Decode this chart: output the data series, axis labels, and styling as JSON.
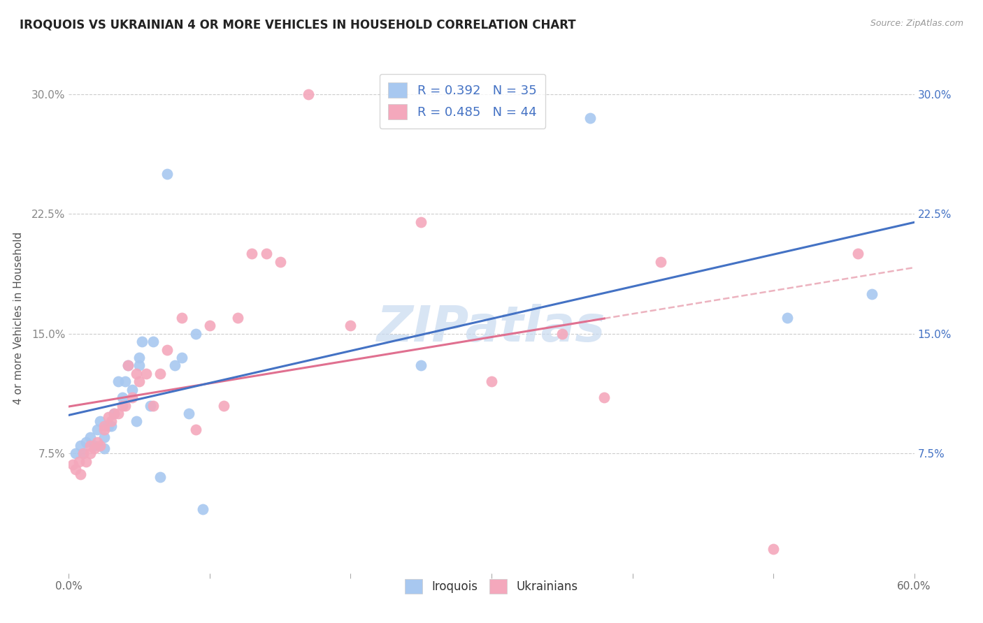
{
  "title": "IROQUOIS VS UKRAINIAN 4 OR MORE VEHICLES IN HOUSEHOLD CORRELATION CHART",
  "source": "Source: ZipAtlas.com",
  "ylabel": "4 or more Vehicles in Household",
  "xlim": [
    0.0,
    0.6
  ],
  "ylim": [
    0.0,
    0.32
  ],
  "xticks": [
    0.0,
    0.1,
    0.2,
    0.3,
    0.4,
    0.5,
    0.6
  ],
  "xticklabels_left": "0.0%",
  "xticklabels_right": "60.0%",
  "yticks": [
    0.0,
    0.075,
    0.15,
    0.225,
    0.3
  ],
  "yticklabels_left": [
    "",
    "7.5%",
    "15.0%",
    "22.5%",
    "30.0%"
  ],
  "yticklabels_right": [
    "",
    "7.5%",
    "15.0%",
    "22.5%",
    "30.0%"
  ],
  "iroquois_R": 0.392,
  "iroquois_N": 35,
  "ukrainian_R": 0.485,
  "ukrainian_N": 44,
  "iroquois_color": "#a8c8f0",
  "ukrainian_color": "#f4a8bc",
  "iroquois_line_color": "#4472c4",
  "ukrainian_line_color": "#e07090",
  "ukrainian_dash_color": "#e8a0b0",
  "watermark_text": "ZIPatlas",
  "watermark_color": "#c8daf0",
  "iroquois_x": [
    0.005,
    0.008,
    0.01,
    0.012,
    0.015,
    0.018,
    0.02,
    0.022,
    0.025,
    0.025,
    0.028,
    0.03,
    0.032,
    0.035,
    0.038,
    0.04,
    0.042,
    0.045,
    0.048,
    0.05,
    0.05,
    0.052,
    0.058,
    0.06,
    0.065,
    0.07,
    0.075,
    0.08,
    0.085,
    0.09,
    0.095,
    0.25,
    0.37,
    0.51,
    0.57
  ],
  "iroquois_y": [
    0.075,
    0.08,
    0.075,
    0.082,
    0.085,
    0.08,
    0.09,
    0.095,
    0.085,
    0.078,
    0.092,
    0.092,
    0.1,
    0.12,
    0.11,
    0.12,
    0.13,
    0.115,
    0.095,
    0.13,
    0.135,
    0.145,
    0.105,
    0.145,
    0.06,
    0.25,
    0.13,
    0.135,
    0.1,
    0.15,
    0.04,
    0.13,
    0.285,
    0.16,
    0.175
  ],
  "ukrainian_x": [
    0.003,
    0.005,
    0.007,
    0.008,
    0.01,
    0.012,
    0.015,
    0.015,
    0.018,
    0.02,
    0.022,
    0.025,
    0.025,
    0.028,
    0.03,
    0.032,
    0.035,
    0.038,
    0.04,
    0.042,
    0.045,
    0.048,
    0.05,
    0.055,
    0.06,
    0.065,
    0.07,
    0.08,
    0.09,
    0.1,
    0.11,
    0.12,
    0.13,
    0.14,
    0.15,
    0.17,
    0.2,
    0.25,
    0.3,
    0.35,
    0.38,
    0.42,
    0.5,
    0.56
  ],
  "ukrainian_y": [
    0.068,
    0.065,
    0.07,
    0.062,
    0.075,
    0.07,
    0.075,
    0.08,
    0.078,
    0.082,
    0.08,
    0.09,
    0.092,
    0.098,
    0.095,
    0.1,
    0.1,
    0.105,
    0.105,
    0.13,
    0.11,
    0.125,
    0.12,
    0.125,
    0.105,
    0.125,
    0.14,
    0.16,
    0.09,
    0.155,
    0.105,
    0.16,
    0.2,
    0.2,
    0.195,
    0.3,
    0.155,
    0.22,
    0.12,
    0.15,
    0.11,
    0.195,
    0.015,
    0.2
  ]
}
